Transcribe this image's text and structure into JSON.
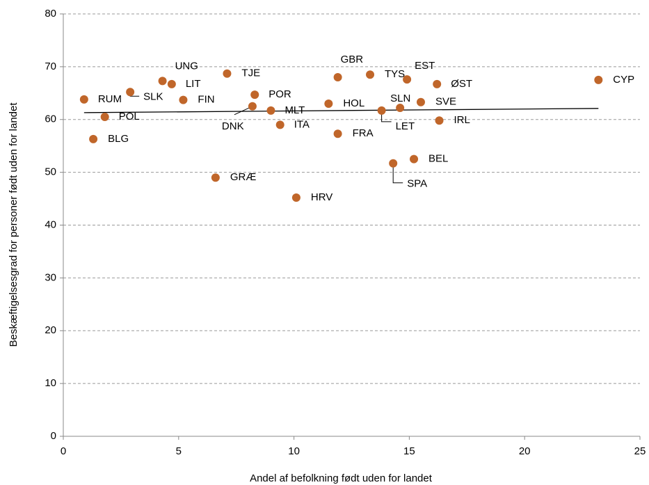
{
  "chart_data": {
    "type": "scatter",
    "x_label": "Andel af befolkning født uden for landet",
    "y_label": "Beskæftigelsesgrad for personer født uden for landet",
    "labels": [
      "RUM",
      "SLK",
      "POL",
      "BLG",
      "UNG",
      "LIT",
      "FIN",
      "TJE",
      "POR",
      "DNK",
      "MLT",
      "ITA",
      "GRÆ",
      "HRV",
      "GBR",
      "HOL",
      "FRA",
      "TYS",
      "EST",
      "ØST",
      "SLN",
      "LET",
      "SVE",
      "IRL",
      "BEL",
      "SPA",
      "CYP"
    ],
    "x": [
      0.9,
      2.9,
      1.8,
      1.3,
      4.3,
      4.7,
      5.2,
      7.1,
      8.3,
      8.2,
      9.0,
      9.4,
      6.6,
      10.1,
      11.9,
      11.5,
      11.9,
      13.3,
      14.9,
      16.2,
      14.6,
      13.8,
      15.5,
      16.3,
      15.2,
      14.3,
      23.2
    ],
    "values": [
      63.8,
      65.2,
      60.5,
      56.3,
      67.3,
      66.7,
      63.7,
      68.7,
      64.7,
      62.5,
      61.7,
      59.0,
      49.0,
      45.2,
      68.0,
      63.0,
      57.3,
      68.5,
      67.6,
      66.7,
      62.2,
      61.7,
      63.3,
      59.8,
      52.5,
      51.7,
      67.5
    ],
    "color": "#c0662a",
    "trendline": {
      "x": [
        0.9,
        23.2
      ],
      "values": [
        61.3,
        62.1
      ],
      "color": "#000000"
    },
    "xlim": [
      0,
      25
    ],
    "xticks": [
      0,
      5,
      10,
      15,
      20,
      25
    ],
    "ylim": [
      0,
      80
    ],
    "yticks": [
      0,
      10,
      20,
      30,
      40,
      50,
      60,
      70,
      80
    ],
    "grid": true
  }
}
